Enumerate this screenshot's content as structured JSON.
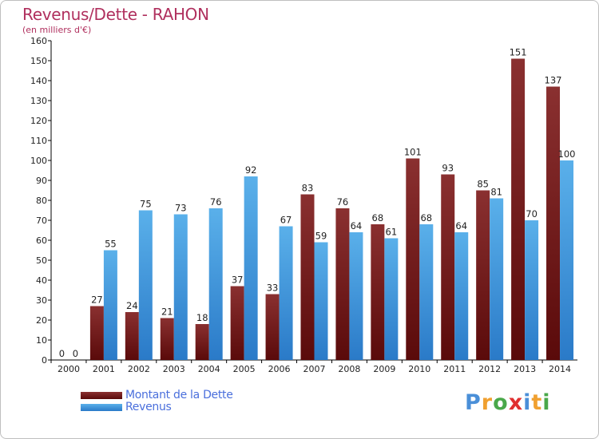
{
  "title": "Revenus/Dette - RAHON",
  "subtitle": "(en milliers d'€)",
  "logo": {
    "text": "Proxiti",
    "letters": [
      {
        "ch": "P",
        "color": "#4a8fd8"
      },
      {
        "ch": "r",
        "color": "#f0a030"
      },
      {
        "ch": "o",
        "color": "#4aa84a"
      },
      {
        "ch": "x",
        "color": "#e03030"
      },
      {
        "ch": "i",
        "color": "#4a8fd8"
      },
      {
        "ch": "t",
        "color": "#f0a030"
      },
      {
        "ch": "i",
        "color": "#4aa84a"
      }
    ]
  },
  "colors": {
    "debt_dark": "#5a0a0a",
    "debt_light": "#8a3030",
    "rev_dark": "#2a7ac8",
    "rev_light": "#5ab0ea"
  },
  "chart_data": {
    "type": "bar",
    "title": "Revenus/Dette - RAHON",
    "ylabel": "(en milliers d'€)",
    "xlabel": "",
    "ylim": [
      0,
      160
    ],
    "yticks": [
      0,
      10,
      20,
      30,
      40,
      50,
      60,
      70,
      80,
      90,
      100,
      110,
      120,
      130,
      140,
      150,
      160
    ],
    "categories": [
      "2000",
      "2001",
      "2002",
      "2003",
      "2004",
      "2005",
      "2006",
      "2007",
      "2008",
      "2009",
      "2010",
      "2011",
      "2012",
      "2013",
      "2014"
    ],
    "series": [
      {
        "name": "Montant de la Dette",
        "values": [
          0,
          27,
          24,
          21,
          18,
          37,
          33,
          83,
          76,
          68,
          101,
          93,
          85,
          151,
          137
        ]
      },
      {
        "name": "Revenus",
        "values": [
          0,
          55,
          75,
          73,
          76,
          92,
          67,
          59,
          64,
          61,
          68,
          64,
          81,
          70,
          100
        ]
      }
    ],
    "legend": "bottom-left"
  }
}
